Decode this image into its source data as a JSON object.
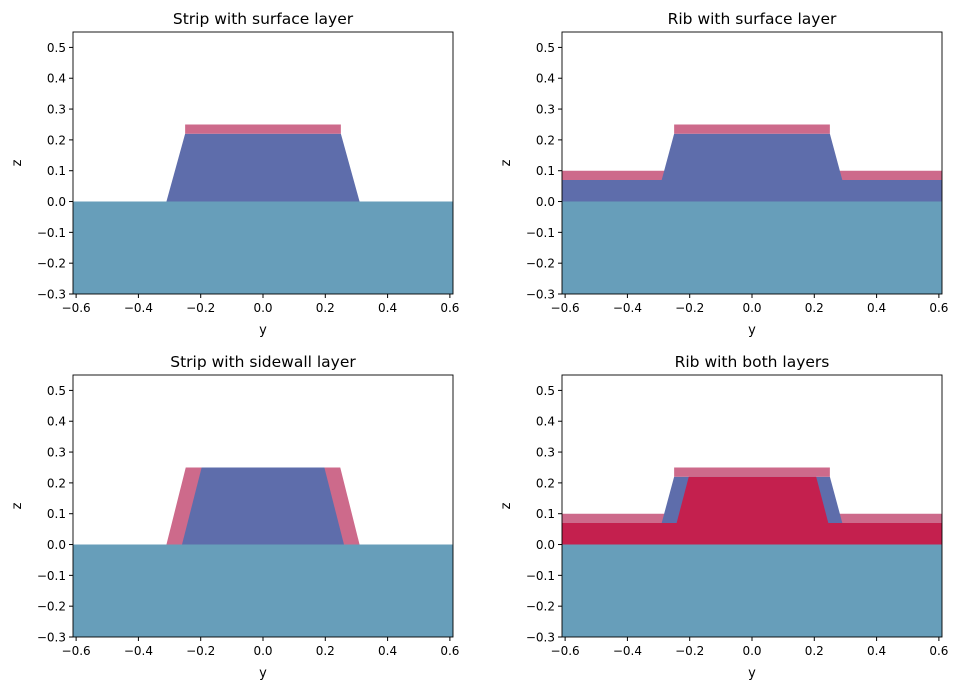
{
  "colors": {
    "substrate": "#679eba",
    "core": "#5e6dab",
    "layer": "#cd6a8b",
    "both": "#c4204e"
  },
  "chart_data": [
    {
      "type": "area",
      "title": "Strip with surface layer",
      "xlabel": "y",
      "ylabel": "z",
      "xlim": [
        -0.61,
        0.61
      ],
      "ylim": [
        -0.3,
        0.55
      ],
      "xticks": [
        -0.6,
        -0.4,
        -0.2,
        0.0,
        0.2,
        0.4,
        0.6
      ],
      "yticks": [
        -0.3,
        -0.2,
        -0.1,
        0.0,
        0.1,
        0.2,
        0.3,
        0.4,
        0.5
      ],
      "shapes": [
        {
          "fill": "substrate",
          "points": [
            [
              -0.61,
              -0.3
            ],
            [
              0.61,
              -0.3
            ],
            [
              0.61,
              0
            ],
            [
              -0.61,
              0
            ]
          ]
        },
        {
          "fill": "core",
          "points": [
            [
              -0.31,
              0
            ],
            [
              0.31,
              0
            ],
            [
              0.25,
              0.22
            ],
            [
              -0.25,
              0.22
            ]
          ]
        },
        {
          "fill": "layer",
          "points": [
            [
              -0.25,
              0.22
            ],
            [
              0.25,
              0.22
            ],
            [
              0.25,
              0.25
            ],
            [
              -0.25,
              0.25
            ]
          ]
        }
      ]
    },
    {
      "type": "area",
      "title": "Rib with surface layer",
      "xlabel": "y",
      "ylabel": "z",
      "xlim": [
        -0.61,
        0.61
      ],
      "ylim": [
        -0.3,
        0.55
      ],
      "xticks": [
        -0.6,
        -0.4,
        -0.2,
        0.0,
        0.2,
        0.4,
        0.6
      ],
      "yticks": [
        -0.3,
        -0.2,
        -0.1,
        0.0,
        0.1,
        0.2,
        0.3,
        0.4,
        0.5
      ],
      "shapes": [
        {
          "fill": "substrate",
          "points": [
            [
              -0.61,
              -0.3
            ],
            [
              0.61,
              -0.3
            ],
            [
              0.61,
              0
            ],
            [
              -0.61,
              0
            ]
          ]
        },
        {
          "fill": "layer",
          "points": [
            [
              -0.61,
              0.07
            ],
            [
              0.61,
              0.07
            ],
            [
              0.61,
              0.1
            ],
            [
              -0.61,
              0.1
            ]
          ]
        },
        {
          "fill": "core",
          "points": [
            [
              -0.61,
              0
            ],
            [
              0.61,
              0
            ],
            [
              0.61,
              0.07
            ],
            [
              -0.61,
              0.07
            ]
          ]
        },
        {
          "fill": "core",
          "points": [
            [
              -0.29,
              0.07
            ],
            [
              0.29,
              0.07
            ],
            [
              0.25,
              0.22
            ],
            [
              -0.25,
              0.22
            ]
          ]
        },
        {
          "fill": "layer",
          "points": [
            [
              -0.25,
              0.22
            ],
            [
              0.25,
              0.22
            ],
            [
              0.25,
              0.25
            ],
            [
              -0.25,
              0.25
            ]
          ]
        }
      ]
    },
    {
      "type": "area",
      "title": "Strip with sidewall layer",
      "xlabel": "y",
      "ylabel": "z",
      "xlim": [
        -0.61,
        0.61
      ],
      "ylim": [
        -0.3,
        0.55
      ],
      "xticks": [
        -0.6,
        -0.4,
        -0.2,
        0.0,
        0.2,
        0.4,
        0.6
      ],
      "yticks": [
        -0.3,
        -0.2,
        -0.1,
        0.0,
        0.1,
        0.2,
        0.3,
        0.4,
        0.5
      ],
      "shapes": [
        {
          "fill": "substrate",
          "points": [
            [
              -0.61,
              -0.3
            ],
            [
              0.61,
              -0.3
            ],
            [
              0.61,
              0
            ],
            [
              -0.61,
              0
            ]
          ]
        },
        {
          "fill": "layer",
          "points": [
            [
              -0.31,
              0
            ],
            [
              0.31,
              0
            ],
            [
              0.248,
              0.25
            ],
            [
              -0.248,
              0.25
            ]
          ]
        },
        {
          "fill": "core",
          "points": [
            [
              -0.26,
              0
            ],
            [
              0.26,
              0
            ],
            [
              0.197,
              0.25
            ],
            [
              -0.197,
              0.25
            ]
          ]
        }
      ]
    },
    {
      "type": "area",
      "title": "Rib with both layers",
      "xlabel": "y",
      "ylabel": "z",
      "xlim": [
        -0.61,
        0.61
      ],
      "ylim": [
        -0.3,
        0.55
      ],
      "xticks": [
        -0.6,
        -0.4,
        -0.2,
        0.0,
        0.2,
        0.4,
        0.6
      ],
      "yticks": [
        -0.3,
        -0.2,
        -0.1,
        0.0,
        0.1,
        0.2,
        0.3,
        0.4,
        0.5
      ],
      "shapes": [
        {
          "fill": "substrate",
          "points": [
            [
              -0.61,
              -0.3
            ],
            [
              0.61,
              -0.3
            ],
            [
              0.61,
              0
            ],
            [
              -0.61,
              0
            ]
          ]
        },
        {
          "fill": "layer",
          "points": [
            [
              -0.61,
              0.07
            ],
            [
              0.61,
              0.07
            ],
            [
              0.61,
              0.1
            ],
            [
              -0.61,
              0.1
            ]
          ]
        },
        {
          "fill": "both",
          "points": [
            [
              -0.61,
              0
            ],
            [
              0.61,
              0
            ],
            [
              0.61,
              0.07
            ],
            [
              -0.61,
              0.07
            ]
          ]
        },
        {
          "fill": "core",
          "points": [
            [
              -0.29,
              0.07
            ],
            [
              0.29,
              0.07
            ],
            [
              0.25,
              0.22
            ],
            [
              -0.25,
              0.22
            ]
          ]
        },
        {
          "fill": "both",
          "points": [
            [
              -0.242,
              0.07
            ],
            [
              0.245,
              0.07
            ],
            [
              0.206,
              0.22
            ],
            [
              -0.203,
              0.22
            ]
          ]
        },
        {
          "fill": "layer",
          "points": [
            [
              -0.25,
              0.22
            ],
            [
              0.25,
              0.22
            ],
            [
              0.25,
              0.25
            ],
            [
              -0.25,
              0.25
            ]
          ]
        }
      ]
    }
  ]
}
